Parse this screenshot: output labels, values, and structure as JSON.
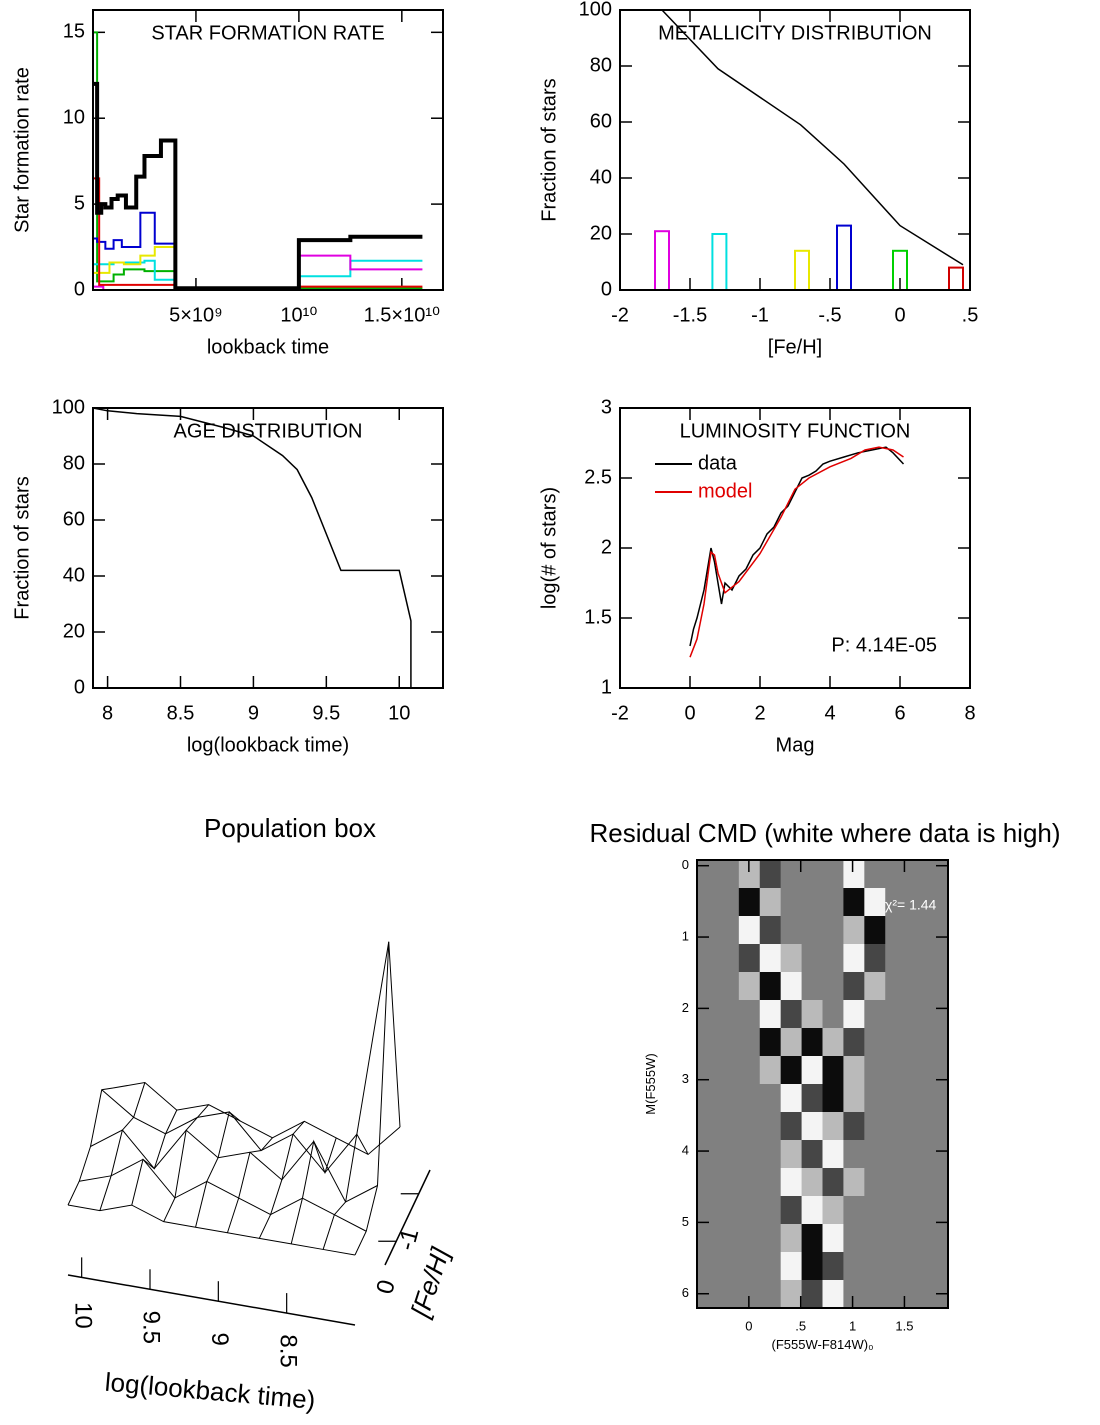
{
  "chart_data": [
    {
      "type": "step",
      "title": "STAR FORMATION RATE",
      "ylabel": "Star formation rate",
      "xlabel": "lookback time",
      "xlim": [
        0,
        17000000000
      ],
      "ylim": [
        0,
        16.3
      ],
      "xticks": [
        {
          "value": 5000000000,
          "label": "5×10⁹"
        },
        {
          "value": 10000000000,
          "label": "10¹⁰"
        },
        {
          "value": 15000000000,
          "label": "1.5×10¹⁰"
        }
      ],
      "yticks": [
        0,
        5,
        10,
        15
      ],
      "series": [
        {
          "color": "#00b000",
          "x": [
            0,
            200000000,
            1000000000,
            1500000000,
            2500000000,
            4000000000,
            10000000000,
            16000000000
          ],
          "values": [
            15,
            0.5,
            0.9,
            1.2,
            1.1,
            0,
            0.1,
            0.1
          ]
        },
        {
          "color": "#0000d0",
          "x": [
            0,
            200000000,
            600000000,
            1000000000,
            1400000000,
            2300000000,
            3000000000,
            4000000000
          ],
          "values": [
            3,
            2.8,
            2.4,
            2.9,
            2.5,
            4.5,
            2.7,
            0
          ]
        },
        {
          "color": "#00e0e0",
          "x": [
            0,
            1000000000,
            2500000000,
            3000000000,
            4000000000,
            10000000000,
            12500000000,
            16000000000
          ],
          "values": [
            1.5,
            1.6,
            1.7,
            0.6,
            0,
            0.8,
            1.7,
            1.7
          ]
        },
        {
          "color": "#e8e800",
          "x": [
            0,
            800000000,
            1500000000,
            2300000000,
            3000000000,
            4000000000
          ],
          "values": [
            1,
            1.6,
            1.5,
            2,
            2.5,
            0
          ]
        },
        {
          "color": "#e000e0",
          "x": [
            0,
            500000000,
            4000000000,
            10000000000,
            12500000000,
            16000000000
          ],
          "values": [
            0.2,
            0,
            0,
            2,
            1.2,
            1.2
          ]
        },
        {
          "color": "#e00000",
          "x": [
            0,
            300000000,
            4000000000,
            10000000000,
            16000000000
          ],
          "values": [
            6.5,
            0.3,
            0,
            0.2,
            0.2
          ]
        },
        {
          "color": "#000000",
          "x": [
            0,
            200000000,
            400000000,
            600000000,
            900000000,
            1200000000,
            1600000000,
            2100000000,
            2500000000,
            3300000000,
            4000000000,
            10000000000,
            12500000000,
            16000000000
          ],
          "values": [
            12,
            4.5,
            5,
            4.8,
            5.3,
            5.5,
            4.8,
            6.6,
            7.8,
            8.7,
            0.1,
            2.9,
            3.1,
            3.1
          ]
        }
      ]
    },
    {
      "type": "line",
      "title": "METALLICITY DISTRIBUTION",
      "ylabel": "Fraction of stars",
      "xlabel": "[Fe/H]",
      "xlim": [
        -2,
        0.5
      ],
      "ylim": [
        0,
        100
      ],
      "xticks": [
        -2,
        -1.5,
        -1,
        {
          "value": -0.5,
          "label": "-.5"
        },
        0,
        {
          "value": 0.5,
          "label": ".5"
        }
      ],
      "yticks": [
        0,
        20,
        40,
        60,
        80,
        100
      ],
      "series": [
        {
          "color": "#000000",
          "x": [
            -1.7,
            -1.3,
            -0.71,
            -0.4,
            0,
            0.45
          ],
          "values": [
            100,
            79,
            59,
            45,
            23,
            9
          ]
        }
      ],
      "bars": {
        "x": [
          -1.7,
          -1.29,
          -0.7,
          -0.4,
          0,
          0.4
        ],
        "values": [
          21,
          20,
          14,
          23,
          14,
          8
        ],
        "colors": [
          "#e000e0",
          "#00e0e0",
          "#e8e800",
          "#0000d0",
          "#00d000",
          "#d00000"
        ]
      }
    },
    {
      "type": "line",
      "title": "AGE DISTRIBUTION",
      "ylabel": "Fraction of stars",
      "xlabel": "log(lookback time)",
      "xlim": [
        7.9,
        10.3
      ],
      "ylim": [
        0,
        100
      ],
      "xticks": [
        8,
        8.5,
        9,
        9.5,
        10
      ],
      "yticks": [
        0,
        20,
        40,
        60,
        80,
        100
      ],
      "series": [
        {
          "color": "#000000",
          "x": [
            7.9,
            8,
            8.2,
            8.5,
            8.8,
            9,
            9.2,
            9.3,
            9.4,
            9.5,
            9.6,
            10,
            10.08,
            10.08
          ],
          "values": [
            100,
            99,
            98,
            97,
            93,
            90,
            83,
            78,
            68,
            55,
            42,
            42,
            24,
            0
          ]
        }
      ]
    },
    {
      "type": "line",
      "title": "LUMINOSITY FUNCTION",
      "ylabel": "log(# of stars)",
      "xlabel": "Mag",
      "annotation": "P: 4.14E-05",
      "xlim": [
        -2,
        8
      ],
      "ylim": [
        1,
        3
      ],
      "xticks": [
        -2,
        0,
        2,
        4,
        6,
        8
      ],
      "yticks": [
        1,
        1.5,
        2,
        2.5,
        3
      ],
      "series": [
        {
          "name": "data",
          "color": "#000000",
          "x": [
            0,
            0.1,
            0.2,
            0.3,
            0.4,
            0.5,
            0.6,
            0.7,
            0.8,
            0.9,
            1,
            1.2,
            1.4,
            1.6,
            1.8,
            2,
            2.2,
            2.4,
            2.6,
            2.8,
            3,
            3.2,
            3.4,
            3.6,
            3.8,
            4,
            4.4,
            4.8,
            5.2,
            5.6,
            5.8,
            6.1
          ],
          "values": [
            1.3,
            1.42,
            1.5,
            1.6,
            1.7,
            1.85,
            2.0,
            1.9,
            1.75,
            1.6,
            1.75,
            1.7,
            1.8,
            1.85,
            1.95,
            2.0,
            2.1,
            2.15,
            2.25,
            2.3,
            2.4,
            2.5,
            2.52,
            2.55,
            2.6,
            2.62,
            2.65,
            2.68,
            2.7,
            2.72,
            2.68,
            2.6
          ]
        },
        {
          "name": "model",
          "color": "#e00000",
          "x": [
            0,
            0.2,
            0.4,
            0.6,
            0.7,
            0.8,
            1,
            1.4,
            2,
            2.6,
            3,
            3.4,
            4,
            4.6,
            5,
            5.4,
            5.8,
            6.1
          ],
          "values": [
            1.22,
            1.35,
            1.6,
            1.97,
            1.95,
            1.82,
            1.68,
            1.76,
            1.96,
            2.22,
            2.42,
            2.5,
            2.58,
            2.64,
            2.7,
            2.72,
            2.7,
            2.65
          ]
        }
      ]
    },
    {
      "type": "surface",
      "title": "Population box",
      "xlabel": "log(lookback time)",
      "ylabel": "[Fe/H]",
      "xlim": [
        10.1,
        8.0
      ],
      "ylim": [
        0.5,
        -1.5
      ],
      "xticks": [
        10,
        9.5,
        9,
        8.5
      ],
      "yticks": [
        0,
        -1
      ],
      "z": [
        [
          0,
          0,
          1,
          0,
          0,
          0,
          0,
          0,
          0,
          0
        ],
        [
          0,
          1,
          3,
          0,
          2,
          1,
          0,
          2,
          1,
          0
        ],
        [
          1,
          3,
          0,
          4,
          2,
          3,
          1,
          5,
          0,
          2
        ],
        [
          4,
          2,
          1,
          3,
          4,
          1,
          3,
          0,
          4,
          22
        ],
        [
          2,
          3,
          1,
          2,
          1,
          0,
          2,
          1,
          0,
          3
        ]
      ]
    },
    {
      "type": "heatmap",
      "title": "Residual CMD (white where data is high)",
      "ylabel": "M(F555W)",
      "xlabel": "(F555W-F814W)₀",
      "annotation": "χ²= 1.44",
      "xlim": [
        -0.5,
        1.92
      ],
      "ylim": [
        6.2,
        -0.08
      ],
      "xticks": [
        0,
        {
          "value": 0.5,
          "label": ".5"
        },
        1,
        1.5
      ],
      "yticks": [
        0,
        1,
        2,
        3,
        4,
        5,
        6
      ],
      "z": [
        [
          0,
          0,
          1,
          -1,
          0,
          0,
          0,
          2,
          0,
          0,
          0,
          0
        ],
        [
          0,
          0,
          -2,
          1,
          0,
          0,
          0,
          -2,
          2,
          0,
          0,
          0
        ],
        [
          0,
          0,
          2,
          -1,
          0,
          0,
          0,
          1,
          -2,
          0,
          0,
          0
        ],
        [
          0,
          0,
          -1,
          2,
          1,
          0,
          0,
          2,
          -1,
          0,
          0,
          0
        ],
        [
          0,
          0,
          1,
          -2,
          2,
          0,
          0,
          -1,
          1,
          0,
          0,
          0
        ],
        [
          0,
          0,
          0,
          2,
          -1,
          1,
          0,
          2,
          0,
          0,
          0,
          0
        ],
        [
          0,
          0,
          0,
          -2,
          1,
          -2,
          1,
          -1,
          0,
          0,
          0,
          0
        ],
        [
          0,
          0,
          0,
          1,
          -2,
          2,
          -2,
          1,
          0,
          0,
          0,
          0
        ],
        [
          0,
          0,
          0,
          0,
          2,
          -1,
          -2,
          1,
          0,
          0,
          0,
          0
        ],
        [
          0,
          0,
          0,
          0,
          -1,
          2,
          1,
          -1,
          0,
          0,
          0,
          0
        ],
        [
          0,
          0,
          0,
          0,
          1,
          -1,
          2,
          0,
          0,
          0,
          0,
          0
        ],
        [
          0,
          0,
          0,
          0,
          2,
          1,
          -1,
          1,
          0,
          0,
          0,
          0
        ],
        [
          0,
          0,
          0,
          0,
          -1,
          2,
          1,
          0,
          0,
          0,
          0,
          0
        ],
        [
          0,
          0,
          0,
          0,
          1,
          -2,
          2,
          0,
          0,
          0,
          0,
          0
        ],
        [
          0,
          0,
          0,
          0,
          2,
          -2,
          -1,
          0,
          0,
          0,
          0,
          0
        ],
        [
          0,
          0,
          0,
          0,
          1,
          -1,
          2,
          0,
          0,
          0,
          0,
          0
        ]
      ]
    }
  ]
}
